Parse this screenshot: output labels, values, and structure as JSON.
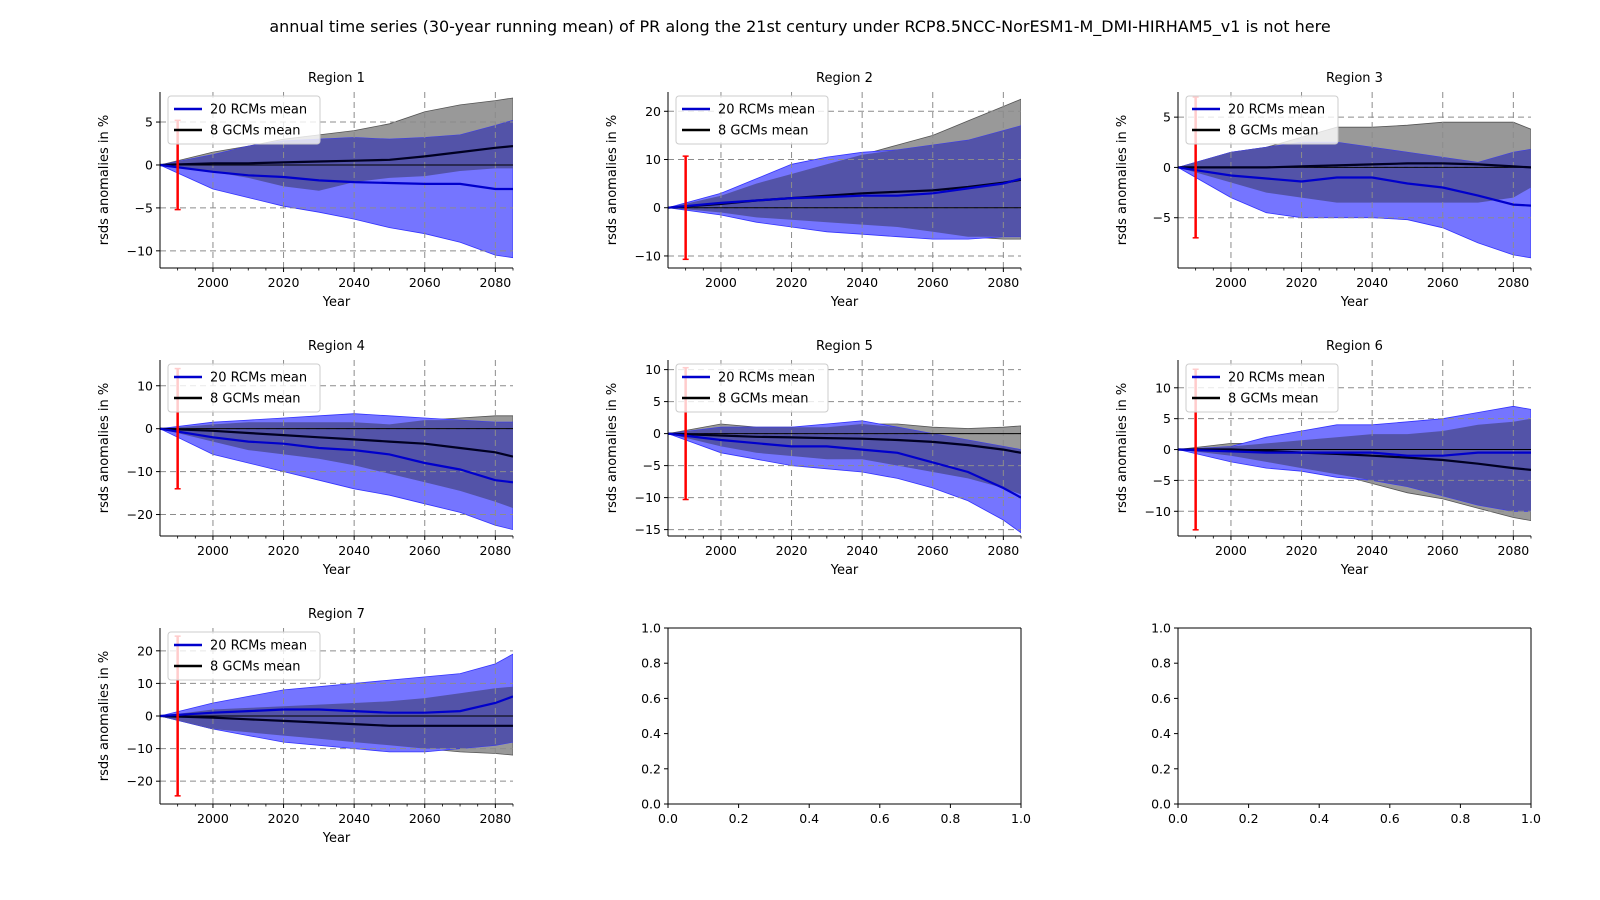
{
  "title": "annual time series (30-year running mean) of PR along the 21st century under RCP8.5NCC-NorESM1-M_DMI-HIRHAM5_v1 is not here",
  "colors": {
    "rcm_line": "#0000cc",
    "rcm_band": "#7575ff",
    "gcm_line": "#000022",
    "gcm_band": "#999999",
    "overlap_band": "#5353a8",
    "error_bar": "#ff0000",
    "grid": "#8c8c8c"
  },
  "chart_data": [
    {
      "type": "line",
      "title": "Region 1",
      "xlabel": "Year",
      "ylabel": "rsds anomalies in %",
      "xlim": [
        1985,
        2085
      ],
      "ylim": [
        -12,
        8.5
      ],
      "xticks": [
        2000,
        2020,
        2040,
        2060,
        2080
      ],
      "yticks": [
        -10,
        -5,
        0,
        5
      ],
      "grid": true,
      "legend": "top-left",
      "error_bar": {
        "x": 1990,
        "low": -5.2,
        "high": 5.2
      },
      "x": [
        1985,
        2000,
        2010,
        2020,
        2030,
        2040,
        2050,
        2060,
        2070,
        2080,
        2085
      ],
      "series": [
        {
          "name": "20 RCMs mean",
          "values": [
            0,
            -0.8,
            -1.2,
            -1.4,
            -1.8,
            -2.0,
            -2.1,
            -2.2,
            -2.2,
            -2.8,
            -2.8
          ],
          "band_low": [
            0,
            -2.8,
            -3.8,
            -4.8,
            -5.5,
            -6.3,
            -7.3,
            -8.0,
            -9.0,
            -10.5,
            -10.8
          ],
          "band_high": [
            0,
            1.2,
            2.2,
            2.8,
            3.0,
            3.2,
            3.0,
            3.2,
            3.5,
            4.6,
            5.2
          ]
        },
        {
          "name": "8 GCMs mean",
          "values": [
            0,
            0.2,
            0.2,
            0.3,
            0.4,
            0.5,
            0.6,
            1.0,
            1.5,
            2.0,
            2.2
          ],
          "band_low": [
            0,
            -0.8,
            -1.5,
            -2.5,
            -3.0,
            -2.0,
            -1.5,
            -1.3,
            -0.7,
            -0.4,
            -0.4
          ],
          "band_high": [
            0,
            1.5,
            2.2,
            3.0,
            3.5,
            4.0,
            4.8,
            6.2,
            7.0,
            7.5,
            7.8
          ]
        }
      ]
    },
    {
      "type": "line",
      "title": "Region 2",
      "xlabel": "Year",
      "ylabel": "rsds anomalies in %",
      "xlim": [
        1985,
        2085
      ],
      "ylim": [
        -12.5,
        24
      ],
      "xticks": [
        2000,
        2020,
        2040,
        2060,
        2080
      ],
      "yticks": [
        -10,
        0,
        10,
        20
      ],
      "grid": true,
      "legend": "top-left",
      "error_bar": {
        "x": 1990,
        "low": -10.7,
        "high": 10.7
      },
      "x": [
        1985,
        2000,
        2010,
        2020,
        2030,
        2040,
        2050,
        2060,
        2070,
        2080,
        2085
      ],
      "series": [
        {
          "name": "20 RCMs mean",
          "values": [
            0,
            1.0,
            1.5,
            2.0,
            2.2,
            2.5,
            2.5,
            3.0,
            4.0,
            5.0,
            6.0
          ],
          "band_low": [
            0,
            -1.5,
            -3.0,
            -4.0,
            -5.0,
            -5.5,
            -6.0,
            -6.5,
            -6.5,
            -6.0,
            -6.0
          ],
          "band_high": [
            0,
            3.0,
            6.0,
            9.0,
            10.5,
            11.5,
            12.0,
            13.0,
            14.0,
            16.0,
            17.0
          ]
        },
        {
          "name": "8 GCMs mean",
          "values": [
            0,
            0.8,
            1.5,
            2.0,
            2.5,
            3.0,
            3.3,
            3.6,
            4.3,
            5.2,
            5.8
          ],
          "band_low": [
            0,
            -1.0,
            -2.0,
            -2.5,
            -3.0,
            -3.5,
            -4.0,
            -5.0,
            -6.0,
            -6.5,
            -6.5
          ],
          "band_high": [
            0,
            2.5,
            5.0,
            7.0,
            9.0,
            11.0,
            13.0,
            15.0,
            18.0,
            21.0,
            22.5
          ]
        }
      ]
    },
    {
      "type": "line",
      "title": "Region 3",
      "xlabel": "Year",
      "ylabel": "rsds anomalies in %",
      "xlim": [
        1985,
        2085
      ],
      "ylim": [
        -10,
        7.5
      ],
      "xticks": [
        2000,
        2020,
        2040,
        2060,
        2080
      ],
      "yticks": [
        -5,
        0,
        5
      ],
      "grid": true,
      "legend": "top-left",
      "error_bar": {
        "x": 1990,
        "low": -7.0,
        "high": 7.0
      },
      "x": [
        1985,
        2000,
        2010,
        2020,
        2030,
        2040,
        2050,
        2060,
        2070,
        2080,
        2085
      ],
      "series": [
        {
          "name": "20 RCMs mean",
          "values": [
            0,
            -0.8,
            -1.1,
            -1.4,
            -1.0,
            -1.0,
            -1.6,
            -2.0,
            -2.8,
            -3.7,
            -3.8
          ],
          "band_low": [
            0,
            -3.0,
            -4.5,
            -5.0,
            -5.0,
            -5.0,
            -5.2,
            -6.0,
            -7.5,
            -8.7,
            -9.0
          ],
          "band_high": [
            0,
            1.5,
            2.0,
            2.5,
            2.5,
            2.0,
            1.5,
            1.0,
            0.5,
            1.5,
            1.8
          ]
        },
        {
          "name": "8 GCMs mean",
          "values": [
            0,
            0,
            0,
            0.1,
            0.2,
            0.3,
            0.4,
            0.4,
            0.3,
            0.1,
            0
          ],
          "band_low": [
            0,
            -1.5,
            -2.5,
            -3.0,
            -3.5,
            -3.5,
            -3.5,
            -3.5,
            -3.5,
            -3.0,
            -2.0
          ],
          "band_high": [
            0,
            1.5,
            2.0,
            3.0,
            4.0,
            4.0,
            4.2,
            4.5,
            4.5,
            4.5,
            3.8
          ]
        }
      ]
    },
    {
      "type": "line",
      "title": "Region 4",
      "xlabel": "Year",
      "ylabel": "rsds anomalies in %",
      "xlim": [
        1985,
        2085
      ],
      "ylim": [
        -25,
        16
      ],
      "xticks": [
        2000,
        2020,
        2040,
        2060,
        2080
      ],
      "yticks": [
        -20,
        -10,
        0,
        10
      ],
      "grid": true,
      "legend": "top-left",
      "error_bar": {
        "x": 1990,
        "low": -14.0,
        "high": 14.0
      },
      "x": [
        1985,
        2000,
        2010,
        2020,
        2030,
        2040,
        2050,
        2060,
        2070,
        2080,
        2085
      ],
      "series": [
        {
          "name": "20 RCMs mean",
          "values": [
            0,
            -2.0,
            -3.0,
            -3.5,
            -4.5,
            -5.0,
            -6.0,
            -8.0,
            -9.5,
            -12.0,
            -12.5
          ],
          "band_low": [
            0,
            -6.0,
            -8.0,
            -10.0,
            -12.0,
            -14.0,
            -15.5,
            -17.5,
            -19.5,
            -22.5,
            -23.5
          ],
          "band_high": [
            0,
            1.5,
            2.0,
            2.5,
            3.0,
            3.5,
            3.0,
            2.5,
            2.0,
            1.5,
            1.5
          ]
        },
        {
          "name": "8 GCMs mean",
          "values": [
            0,
            -0.5,
            -1.0,
            -1.5,
            -2.0,
            -2.5,
            -3.0,
            -3.5,
            -4.5,
            -5.5,
            -6.5
          ],
          "band_low": [
            0,
            -3.0,
            -5.0,
            -6.0,
            -7.0,
            -8.5,
            -10.5,
            -12.5,
            -14.5,
            -17.0,
            -18.5
          ],
          "band_high": [
            0,
            1.0,
            1.5,
            1.5,
            1.5,
            1.5,
            1.0,
            2.0,
            2.5,
            3.0,
            3.0
          ]
        }
      ]
    },
    {
      "type": "line",
      "title": "Region 5",
      "xlabel": "Year",
      "ylabel": "rsds anomalies in %",
      "xlim": [
        1985,
        2085
      ],
      "ylim": [
        -16,
        11.5
      ],
      "xticks": [
        2000,
        2020,
        2040,
        2060,
        2080
      ],
      "yticks": [
        -15,
        -10,
        -5,
        0,
        5,
        10
      ],
      "grid": true,
      "legend": "top-left",
      "error_bar": {
        "x": 1990,
        "low": -10.3,
        "high": 10.3
      },
      "x": [
        1985,
        2000,
        2010,
        2020,
        2030,
        2040,
        2050,
        2060,
        2070,
        2080,
        2085
      ],
      "series": [
        {
          "name": "20 RCMs mean",
          "values": [
            0,
            -1.0,
            -1.5,
            -2.0,
            -2.0,
            -2.5,
            -3.0,
            -4.5,
            -6.0,
            -8.5,
            -10.0
          ],
          "band_low": [
            0,
            -3.0,
            -4.0,
            -5.0,
            -5.5,
            -6.0,
            -7.0,
            -8.5,
            -10.5,
            -13.5,
            -15.5
          ],
          "band_high": [
            0,
            1.0,
            1.0,
            1.0,
            1.5,
            2.0,
            1.0,
            0,
            -1.0,
            -2.0,
            -2.5
          ]
        },
        {
          "name": "8 GCMs mean",
          "values": [
            0,
            -0.3,
            -0.5,
            -0.6,
            -0.7,
            -0.8,
            -1.0,
            -1.3,
            -1.8,
            -2.5,
            -3.0
          ],
          "band_low": [
            0,
            -2.0,
            -3.0,
            -3.5,
            -4.0,
            -4.0,
            -5.0,
            -6.0,
            -7.0,
            -8.5,
            -9.5
          ],
          "band_high": [
            0,
            1.5,
            1.0,
            1.0,
            1.0,
            1.5,
            1.5,
            1.0,
            0.8,
            1.0,
            1.2
          ]
        }
      ]
    },
    {
      "type": "line",
      "title": "Region 6",
      "xlabel": "Year",
      "ylabel": "rsds anomalies in %",
      "xlim": [
        1985,
        2085
      ],
      "ylim": [
        -14,
        14.5
      ],
      "xticks": [
        2000,
        2020,
        2040,
        2060,
        2080
      ],
      "yticks": [
        -10,
        -5,
        0,
        5,
        10
      ],
      "grid": true,
      "legend": "top-left",
      "error_bar": {
        "x": 1990,
        "low": -13.0,
        "high": 13.0
      },
      "x": [
        1985,
        2000,
        2010,
        2020,
        2030,
        2040,
        2050,
        2060,
        2070,
        2080,
        2085
      ],
      "series": [
        {
          "name": "20 RCMs mean",
          "values": [
            0,
            -0.3,
            -0.5,
            -0.5,
            -0.5,
            -0.5,
            -1.0,
            -1.0,
            -0.5,
            -0.5,
            -0.5
          ],
          "band_low": [
            0,
            -2.0,
            -3.0,
            -3.5,
            -4.5,
            -5.0,
            -6.0,
            -7.5,
            -9.0,
            -10.0,
            -10.0
          ],
          "band_high": [
            0,
            0.5,
            2.0,
            3.0,
            4.0,
            4.0,
            4.5,
            5.0,
            6.0,
            7.0,
            6.5
          ]
        },
        {
          "name": "8 GCMs mean",
          "values": [
            0,
            0,
            -0.2,
            -0.5,
            -0.7,
            -1.0,
            -1.3,
            -1.7,
            -2.3,
            -3.0,
            -3.3
          ],
          "band_low": [
            0,
            -1.0,
            -2.0,
            -3.0,
            -4.0,
            -5.5,
            -7.0,
            -8.0,
            -9.5,
            -11.0,
            -11.5
          ],
          "band_high": [
            0,
            1.0,
            1.0,
            1.5,
            2.0,
            2.5,
            2.5,
            3.0,
            4.0,
            4.5,
            5.0
          ]
        }
      ]
    },
    {
      "type": "line",
      "title": "Region 7",
      "xlabel": "Year",
      "ylabel": "rsds anomalies in %",
      "xlim": [
        1985,
        2085
      ],
      "ylim": [
        -27,
        27
      ],
      "xticks": [
        2000,
        2020,
        2040,
        2060,
        2080
      ],
      "yticks": [
        -20,
        -10,
        0,
        10,
        20
      ],
      "grid": true,
      "legend": "top-left",
      "error_bar": {
        "x": 1990,
        "low": -24.5,
        "high": 24.5
      },
      "x": [
        1985,
        2000,
        2010,
        2020,
        2030,
        2040,
        2050,
        2060,
        2070,
        2080,
        2085
      ],
      "series": [
        {
          "name": "20 RCMs mean",
          "values": [
            0,
            1.0,
            1.5,
            2.0,
            2.0,
            1.5,
            1.0,
            1.0,
            1.5,
            4.0,
            6.0
          ],
          "band_low": [
            0,
            -4.0,
            -6.0,
            -8.0,
            -9.0,
            -10.0,
            -11.0,
            -11.0,
            -10.0,
            -9.0,
            -8.0
          ],
          "band_high": [
            0,
            4.0,
            6.0,
            8.0,
            9.0,
            10.0,
            11.0,
            12.0,
            13.0,
            16.0,
            19.0
          ]
        },
        {
          "name": "8 GCMs mean",
          "values": [
            0,
            -0.5,
            -1.0,
            -1.5,
            -2.0,
            -2.5,
            -3.0,
            -3.0,
            -3.0,
            -3.0,
            -3.0
          ],
          "band_low": [
            0,
            -4.0,
            -5.0,
            -6.0,
            -7.0,
            -8.0,
            -9.0,
            -10.0,
            -11.0,
            -11.5,
            -12.0
          ],
          "band_high": [
            0,
            2.0,
            2.5,
            3.0,
            3.5,
            4.0,
            4.5,
            5.5,
            7.0,
            8.5,
            9.0
          ]
        }
      ]
    },
    {
      "type": "line",
      "title": "",
      "xlabel": "",
      "ylabel": "",
      "xlim": [
        0,
        1
      ],
      "ylim": [
        0,
        1
      ],
      "xticks": [
        0.0,
        0.2,
        0.4,
        0.6,
        0.8,
        1.0
      ],
      "yticks": [
        0.0,
        0.2,
        0.4,
        0.6,
        0.8,
        1.0
      ],
      "grid": false,
      "series": []
    },
    {
      "type": "line",
      "title": "",
      "xlabel": "",
      "ylabel": "",
      "xlim": [
        0,
        1
      ],
      "ylim": [
        0,
        1
      ],
      "xticks": [
        0.0,
        0.2,
        0.4,
        0.6,
        0.8,
        1.0
      ],
      "yticks": [
        0.0,
        0.2,
        0.4,
        0.6,
        0.8,
        1.0
      ],
      "grid": false,
      "series": []
    }
  ]
}
